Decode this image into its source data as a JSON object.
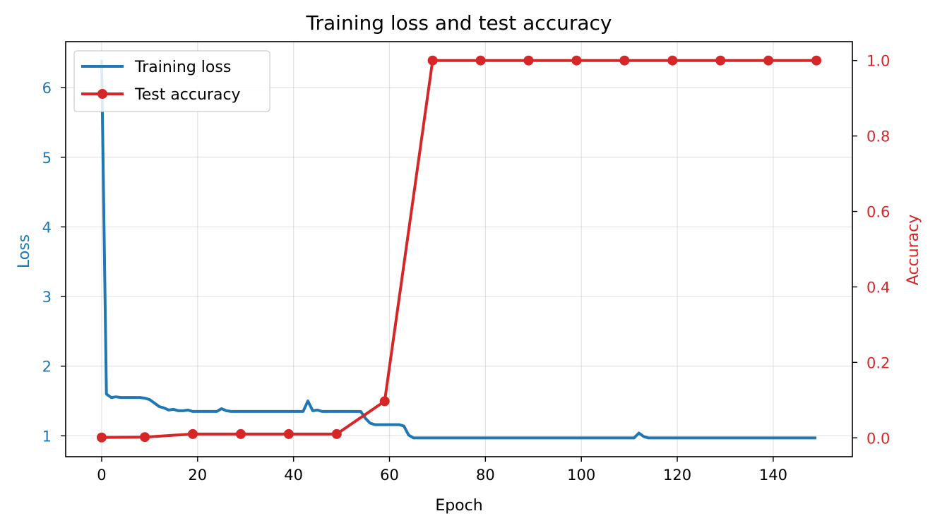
{
  "chart_data": {
    "type": "line",
    "title": "Training loss and test accuracy",
    "xlabel": "Epoch",
    "ylabel_left": "Loss",
    "ylabel_right": "Accuracy",
    "xlim": [
      -7.5,
      156.5
    ],
    "ylim_left": [
      0.7,
      6.66
    ],
    "ylim_right": [
      -0.05,
      1.05
    ],
    "x_ticks": [
      0,
      20,
      40,
      60,
      80,
      100,
      120,
      140
    ],
    "y_ticks_left": [
      1,
      2,
      3,
      4,
      5,
      6
    ],
    "y_ticks_right": [
      0.0,
      0.2,
      0.4,
      0.6,
      0.8,
      1.0
    ],
    "grid": true,
    "legend_position": "upper-left",
    "colors": {
      "loss": "#1f77b4",
      "accuracy": "#d62728"
    },
    "series": [
      {
        "name": "Training loss",
        "axis": "left",
        "marker": "none",
        "x": [
          0,
          1,
          2,
          3,
          4,
          5,
          8,
          9,
          10,
          11,
          12,
          13,
          14,
          15,
          16,
          17,
          18,
          19,
          20,
          24,
          25,
          26,
          27,
          28,
          42,
          43,
          44,
          45,
          46,
          54,
          55,
          56,
          57,
          62,
          63,
          64,
          65,
          111,
          112,
          113,
          114,
          149
        ],
        "y": [
          6.4,
          1.6,
          1.55,
          1.56,
          1.55,
          1.55,
          1.55,
          1.54,
          1.52,
          1.47,
          1.42,
          1.4,
          1.37,
          1.38,
          1.36,
          1.36,
          1.37,
          1.35,
          1.35,
          1.35,
          1.39,
          1.36,
          1.35,
          1.35,
          1.35,
          1.5,
          1.36,
          1.37,
          1.35,
          1.35,
          1.25,
          1.18,
          1.16,
          1.16,
          1.14,
          1.01,
          0.97,
          0.97,
          1.04,
          0.99,
          0.97,
          0.97
        ]
      },
      {
        "name": "Test accuracy",
        "axis": "right",
        "marker": "circle",
        "x": [
          0,
          9,
          19,
          29,
          39,
          49,
          59,
          69,
          79,
          89,
          99,
          109,
          119,
          129,
          139,
          149
        ],
        "y": [
          0.001,
          0.002,
          0.01,
          0.01,
          0.01,
          0.01,
          0.097,
          1.0,
          1.0,
          1.0,
          1.0,
          1.0,
          1.0,
          1.0,
          1.0,
          1.0
        ]
      }
    ]
  }
}
